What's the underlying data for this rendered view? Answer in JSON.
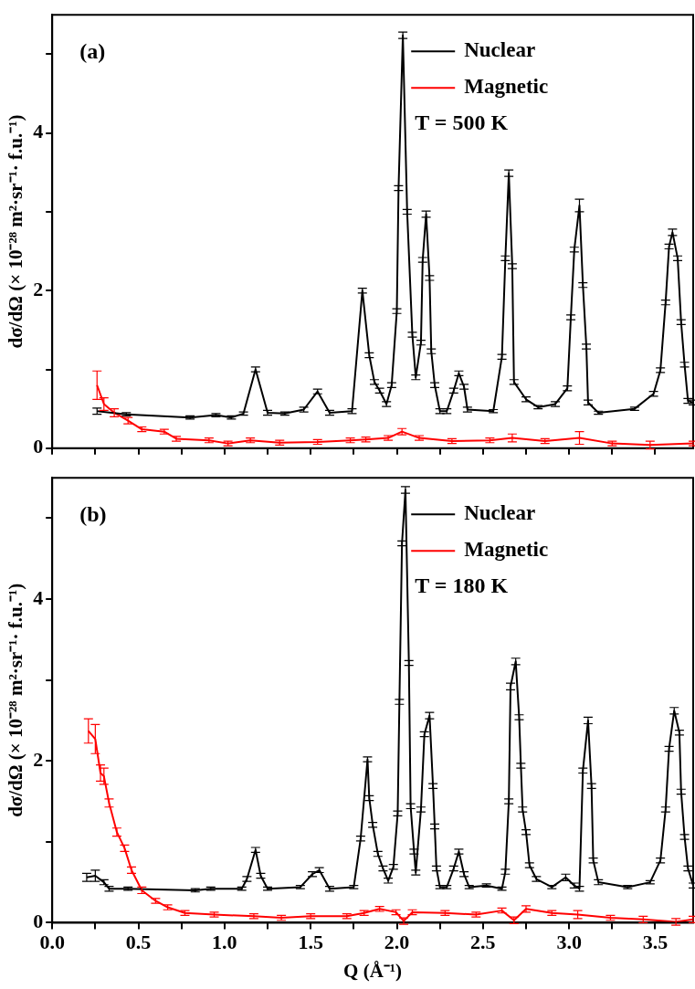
{
  "chart_data": [
    {
      "type": "line",
      "annotations": [
        "(a)",
        "T = 500 K"
      ],
      "ylabel": "dσ/dΩ (× 10⁻²⁸ m²·sr⁻¹· f.u.⁻¹)",
      "xlim": [
        0,
        3.72
      ],
      "ylim": [
        0,
        5.5
      ],
      "xticks": [
        {
          "value": 0,
          "label": null
        },
        {
          "value": 0.25,
          "label": null
        },
        {
          "value": 0.5,
          "label": null
        },
        {
          "value": 0.75,
          "label": null
        },
        {
          "value": 1,
          "label": null
        },
        {
          "value": 1.25,
          "label": null
        },
        {
          "value": 1.5,
          "label": null
        },
        {
          "value": 1.75,
          "label": null
        },
        {
          "value": 2,
          "label": null
        },
        {
          "value": 2.25,
          "label": null
        },
        {
          "value": 2.5,
          "label": null
        },
        {
          "value": 2.75,
          "label": null
        },
        {
          "value": 3,
          "label": null
        },
        {
          "value": 3.25,
          "label": null
        },
        {
          "value": 3.5,
          "label": null
        }
      ],
      "yticks": [
        0,
        {
          "value": 1,
          "label": null
        },
        2,
        {
          "value": 3,
          "label": null
        },
        4,
        {
          "value": 5,
          "label": null
        }
      ],
      "tick_labels": "y",
      "grid": false,
      "legend": "top right",
      "marker": "none",
      "line_style": "solid",
      "series": [
        {
          "name": "Nuclear",
          "color": "#000000",
          "x": [
            0.26,
            0.43,
            0.8,
            0.95,
            1.04,
            1.11,
            1.18,
            1.25,
            1.35,
            1.46,
            1.54,
            1.61,
            1.74,
            1.8,
            1.84,
            1.87,
            1.9,
            1.94,
            1.97,
            2.0,
            2.01,
            2.035,
            2.06,
            2.09,
            2.11,
            2.14,
            2.15,
            2.17,
            2.19,
            2.2,
            2.22,
            2.25,
            2.29,
            2.33,
            2.36,
            2.39,
            2.41,
            2.56,
            2.61,
            2.63,
            2.65,
            2.67,
            2.68,
            2.75,
            2.82,
            2.92,
            2.99,
            3.01,
            3.03,
            3.06,
            3.08,
            3.1,
            3.11,
            3.17,
            3.38,
            3.49,
            3.53,
            3.56,
            3.58,
            3.6,
            3.63,
            3.65,
            3.67,
            3.69,
            3.72
          ],
          "values": [
            0.47,
            0.43,
            0.39,
            0.42,
            0.39,
            0.44,
            1.0,
            0.45,
            0.44,
            0.49,
            0.72,
            0.45,
            0.47,
            2.0,
            1.18,
            0.84,
            0.73,
            0.56,
            0.8,
            1.74,
            3.3,
            5.24,
            3.0,
            1.44,
            0.9,
            1.34,
            2.39,
            2.97,
            2.16,
            1.23,
            0.8,
            0.47,
            0.47,
            0.73,
            0.95,
            0.78,
            0.49,
            0.47,
            1.16,
            2.41,
            3.49,
            2.31,
            0.84,
            0.62,
            0.52,
            0.56,
            0.76,
            1.66,
            2.52,
            3.08,
            2.07,
            1.29,
            0.58,
            0.45,
            0.5,
            0.69,
            0.99,
            1.85,
            2.56,
            2.74,
            2.41,
            1.6,
            1.06,
            0.6,
            0.58
          ],
          "errors": [
            0.04,
            0.02,
            0.02,
            0.02,
            0.02,
            0.02,
            0.03,
            0.03,
            0.02,
            0.03,
            0.03,
            0.03,
            0.03,
            0.03,
            0.03,
            0.03,
            0.03,
            0.03,
            0.03,
            0.03,
            0.03,
            0.04,
            0.03,
            0.03,
            0.03,
            0.03,
            0.03,
            0.04,
            0.03,
            0.03,
            0.03,
            0.03,
            0.03,
            0.03,
            0.03,
            0.03,
            0.03,
            0.02,
            0.03,
            0.03,
            0.04,
            0.03,
            0.03,
            0.03,
            0.02,
            0.03,
            0.03,
            0.03,
            0.03,
            0.08,
            0.03,
            0.03,
            0.03,
            0.02,
            0.02,
            0.03,
            0.03,
            0.03,
            0.03,
            0.04,
            0.03,
            0.03,
            0.03,
            0.03,
            0.03
          ]
        },
        {
          "name": "Magnetic",
          "color": "#ff0000",
          "x": [
            0.26,
            0.3,
            0.36,
            0.44,
            0.52,
            0.65,
            0.72,
            0.91,
            1.02,
            1.15,
            1.32,
            1.54,
            1.73,
            1.82,
            1.95,
            2.03,
            2.13,
            2.32,
            2.54,
            2.67,
            2.86,
            3.06,
            3.25,
            3.47,
            3.72
          ],
          "values": [
            0.8,
            0.56,
            0.45,
            0.35,
            0.24,
            0.21,
            0.12,
            0.1,
            0.06,
            0.1,
            0.07,
            0.08,
            0.1,
            0.11,
            0.13,
            0.21,
            0.13,
            0.09,
            0.1,
            0.13,
            0.09,
            0.13,
            0.06,
            0.04,
            0.06
          ],
          "errors": [
            0.18,
            0.08,
            0.05,
            0.04,
            0.03,
            0.03,
            0.03,
            0.03,
            0.03,
            0.03,
            0.03,
            0.03,
            0.03,
            0.03,
            0.03,
            0.04,
            0.03,
            0.03,
            0.03,
            0.05,
            0.03,
            0.08,
            0.03,
            0.05,
            0.03
          ]
        }
      ]
    },
    {
      "type": "line",
      "annotations": [
        "(b)",
        "T = 180 K"
      ],
      "xlabel": "Q (Å⁻¹)",
      "ylabel": "dσ/dΩ (× 10⁻²⁸ m²·sr⁻¹· f.u.⁻¹)",
      "xlim": [
        0,
        3.72
      ],
      "ylim": [
        0,
        5.5
      ],
      "xticks": [
        {
          "value": 0,
          "label": "0.0"
        },
        {
          "value": 0.25,
          "label": null
        },
        {
          "value": 0.5,
          "label": "0.5"
        },
        {
          "value": 0.75,
          "label": null
        },
        {
          "value": 1,
          "label": "1.0"
        },
        {
          "value": 1.25,
          "label": null
        },
        {
          "value": 1.5,
          "label": "1.5"
        },
        {
          "value": 1.75,
          "label": null
        },
        {
          "value": 2,
          "label": "2.0"
        },
        {
          "value": 2.25,
          "label": null
        },
        {
          "value": 2.5,
          "label": "2.5"
        },
        {
          "value": 2.75,
          "label": null
        },
        {
          "value": 3,
          "label": "3.0"
        },
        {
          "value": 3.25,
          "label": null
        },
        {
          "value": 3.5,
          "label": "3.5"
        }
      ],
      "yticks": [
        0,
        {
          "value": 1,
          "label": null
        },
        2,
        {
          "value": 3,
          "label": null
        },
        4,
        {
          "value": 5,
          "label": null
        }
      ],
      "grid": false,
      "legend": "top right",
      "marker": "none",
      "line_style": "solid",
      "series": [
        {
          "name": "Nuclear",
          "color": "#000000",
          "x": [
            0.2,
            0.25,
            0.3,
            0.33,
            0.44,
            0.83,
            0.92,
            1.1,
            1.13,
            1.18,
            1.21,
            1.25,
            1.44,
            1.51,
            1.55,
            1.61,
            1.75,
            1.79,
            1.83,
            1.84,
            1.86,
            1.89,
            1.92,
            1.95,
            1.98,
            2.005,
            2.015,
            2.03,
            2.05,
            2.07,
            2.08,
            2.1,
            2.11,
            2.14,
            2.16,
            2.19,
            2.21,
            2.22,
            2.23,
            2.25,
            2.29,
            2.33,
            2.36,
            2.39,
            2.42,
            2.52,
            2.61,
            2.63,
            2.65,
            2.66,
            2.69,
            2.71,
            2.72,
            2.73,
            2.75,
            2.77,
            2.81,
            2.9,
            2.98,
            3.03,
            3.06,
            3.08,
            3.11,
            3.13,
            3.14,
            3.17,
            3.34,
            3.47,
            3.53,
            3.56,
            3.58,
            3.61,
            3.64,
            3.65,
            3.67,
            3.69,
            3.72
          ],
          "values": [
            0.56,
            0.58,
            0.5,
            0.42,
            0.42,
            0.4,
            0.42,
            0.42,
            0.54,
            0.9,
            0.58,
            0.42,
            0.44,
            0.6,
            0.65,
            0.42,
            0.44,
            1.04,
            2.02,
            1.54,
            1.21,
            0.85,
            0.67,
            0.52,
            0.69,
            1.35,
            2.73,
            4.69,
            5.35,
            3.21,
            1.44,
            0.88,
            0.62,
            1.4,
            2.33,
            2.56,
            1.69,
            1.19,
            0.67,
            0.44,
            0.44,
            0.67,
            0.88,
            0.6,
            0.44,
            0.46,
            0.42,
            0.63,
            1.5,
            2.92,
            3.23,
            2.54,
            1.94,
            1.4,
            1.12,
            0.71,
            0.54,
            0.44,
            0.56,
            0.46,
            0.42,
            1.88,
            2.5,
            1.69,
            0.77,
            0.5,
            0.44,
            0.5,
            0.77,
            1.4,
            2.15,
            2.62,
            2.35,
            1.62,
            1.06,
            0.67,
            0.46
          ],
          "errors": [
            0.05,
            0.07,
            0.03,
            0.03,
            0.02,
            0.02,
            0.02,
            0.02,
            0.03,
            0.03,
            0.03,
            0.02,
            0.02,
            0.03,
            0.03,
            0.03,
            0.02,
            0.03,
            0.03,
            0.03,
            0.03,
            0.03,
            0.03,
            0.03,
            0.03,
            0.03,
            0.03,
            0.03,
            0.04,
            0.03,
            0.03,
            0.03,
            0.03,
            0.03,
            0.03,
            0.04,
            0.03,
            0.03,
            0.03,
            0.02,
            0.02,
            0.03,
            0.03,
            0.03,
            0.02,
            0.02,
            0.02,
            0.03,
            0.03,
            0.04,
            0.04,
            0.03,
            0.03,
            0.03,
            0.03,
            0.03,
            0.03,
            0.02,
            0.04,
            0.03,
            0.03,
            0.03,
            0.04,
            0.03,
            0.03,
            0.03,
            0.02,
            0.02,
            0.03,
            0.03,
            0.03,
            0.04,
            0.03,
            0.03,
            0.03,
            0.03,
            0.03
          ]
        },
        {
          "name": "Magnetic",
          "color": "#ff0000",
          "x": [
            0.21,
            0.25,
            0.28,
            0.3,
            0.33,
            0.375,
            0.42,
            0.46,
            0.52,
            0.6,
            0.67,
            0.77,
            0.94,
            1.17,
            1.33,
            1.5,
            1.71,
            1.81,
            1.9,
            1.995,
            2.04,
            2.09,
            2.28,
            2.46,
            2.61,
            2.68,
            2.75,
            2.9,
            3.05,
            3.24,
            3.43,
            3.62,
            3.72
          ],
          "values": [
            2.37,
            2.27,
            1.85,
            1.81,
            1.48,
            1.12,
            0.92,
            0.65,
            0.4,
            0.27,
            0.19,
            0.12,
            0.1,
            0.08,
            0.06,
            0.08,
            0.08,
            0.12,
            0.17,
            0.13,
            0.02,
            0.13,
            0.12,
            0.1,
            0.15,
            0.03,
            0.17,
            0.12,
            0.1,
            0.06,
            0.04,
            0.01,
            0.04
          ],
          "errors": [
            0.15,
            0.18,
            0.1,
            0.1,
            0.05,
            0.05,
            0.04,
            0.04,
            0.04,
            0.03,
            0.03,
            0.03,
            0.03,
            0.03,
            0.03,
            0.03,
            0.03,
            0.03,
            0.03,
            0.03,
            0.04,
            0.03,
            0.03,
            0.03,
            0.03,
            0.04,
            0.04,
            0.03,
            0.05,
            0.03,
            0.04,
            0.04,
            0.04
          ]
        }
      ]
    }
  ]
}
